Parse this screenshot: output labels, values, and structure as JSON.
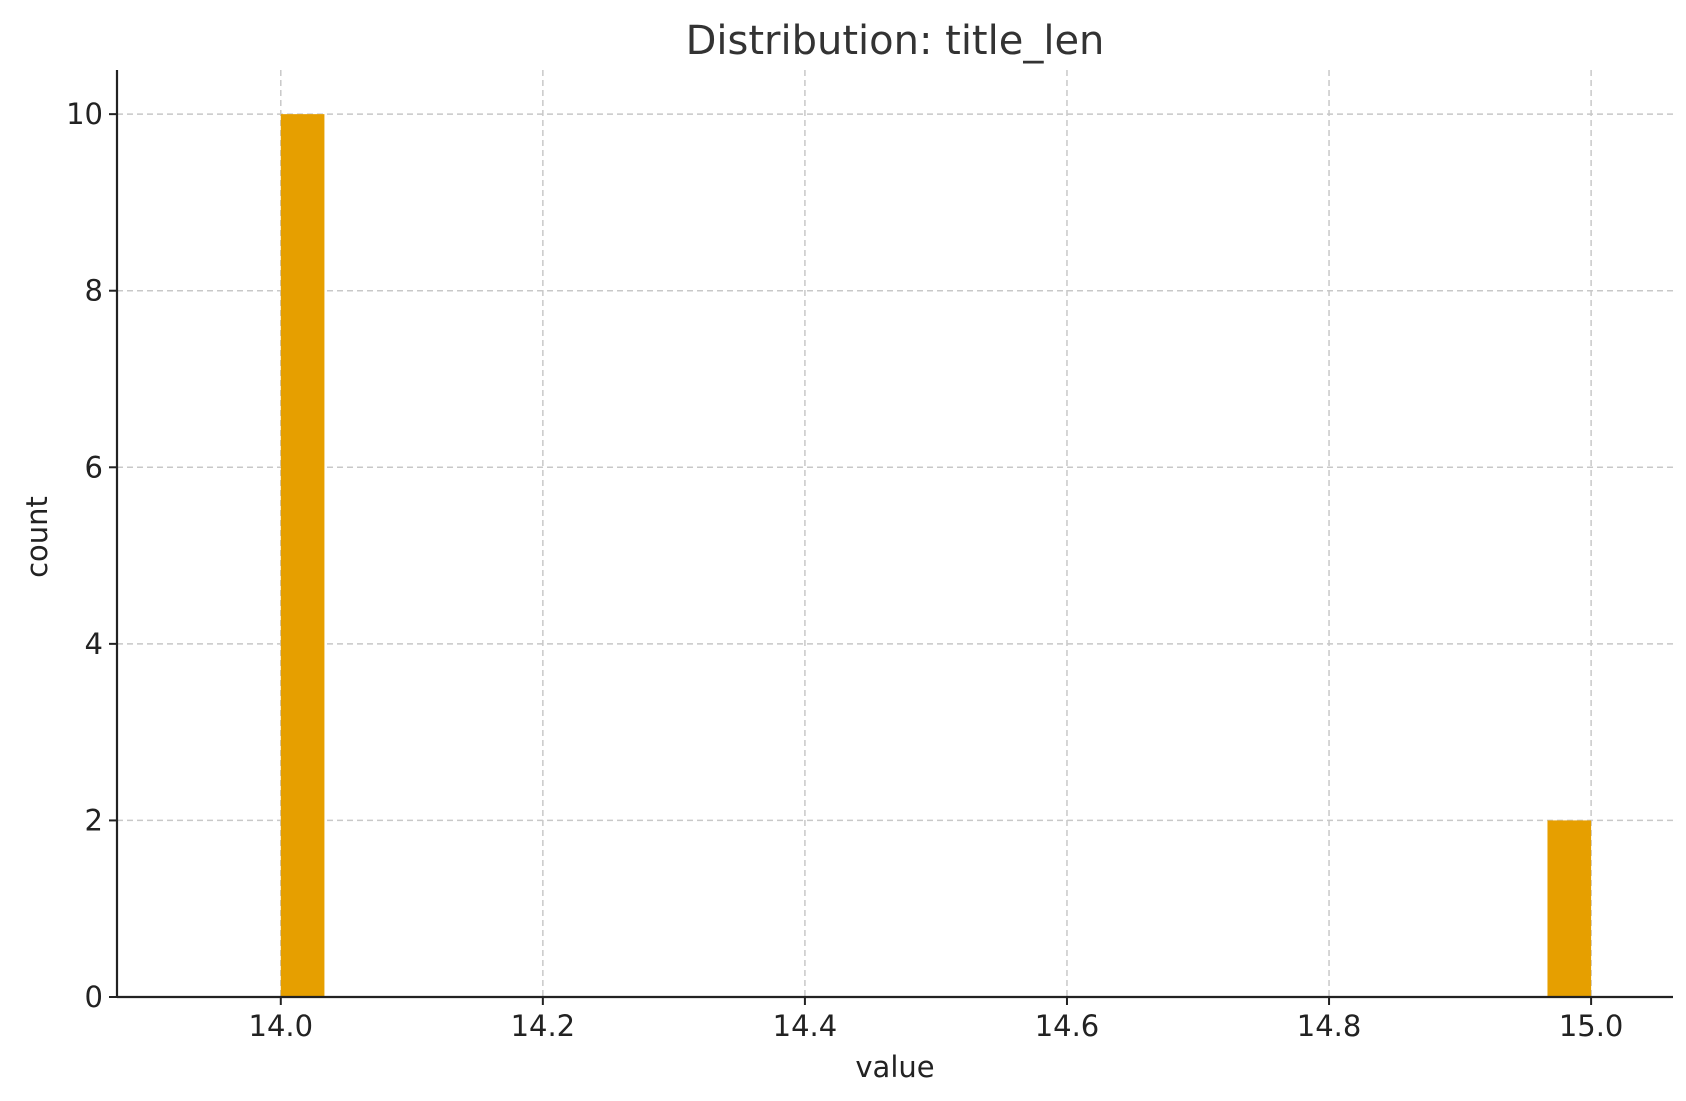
{
  "chart_data": {
    "type": "bar",
    "title": "Distribution: title_len",
    "xlabel": "value",
    "ylabel": "count",
    "xlim": [
      13.875,
      15.0625
    ],
    "ylim": [
      0,
      10.5
    ],
    "xticks": [
      14.0,
      14.2,
      14.4,
      14.6,
      14.8,
      15.0
    ],
    "xtick_labels": [
      "14.0",
      "14.2",
      "14.4",
      "14.6",
      "14.8",
      "15.0"
    ],
    "yticks": [
      0,
      2,
      4,
      6,
      8,
      10
    ],
    "ytick_labels": [
      "0",
      "2",
      "4",
      "6",
      "8",
      "10"
    ],
    "grid": true,
    "bar_color": "#E69F00",
    "bins": [
      {
        "x_start": 14.0,
        "x_end": 14.0333,
        "count": 10
      },
      {
        "x_start": 14.9667,
        "x_end": 15.0,
        "count": 2
      }
    ]
  }
}
